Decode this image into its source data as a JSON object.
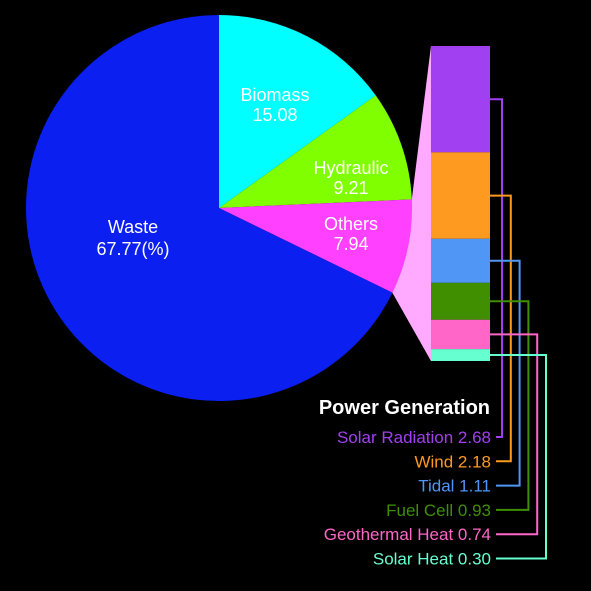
{
  "chart_data": {
    "type": "pie",
    "unit_note": "(%)",
    "slices": [
      {
        "name": "Waste",
        "value": 67.77,
        "color": "#0a1ff0",
        "value_label": "67.77(%)"
      },
      {
        "name": "Biomass",
        "value": 15.08,
        "color": "#00ffff",
        "value_label": "15.08"
      },
      {
        "name": "Hydraulic",
        "value": 9.21,
        "color": "#80ff00",
        "value_label": "9.21"
      },
      {
        "name": "Others",
        "value": 7.94,
        "color": "#ff40ff",
        "value_label": "7.94"
      }
    ],
    "breakdown": {
      "title": "Power Generation",
      "of": "Others",
      "type": "stacked-bar",
      "items": [
        {
          "name": "Solar Radiation",
          "value": 2.68,
          "color": "#a040f0",
          "label_color": "#a040f0",
          "value_label": "2.68"
        },
        {
          "name": "Wind",
          "value": 2.18,
          "color": "#ff9a20",
          "label_color": "#ff9a20",
          "value_label": "2.18"
        },
        {
          "name": "Tidal",
          "value": 1.11,
          "color": "#5097f5",
          "label_color": "#5097f5",
          "value_label": "1.11"
        },
        {
          "name": "Fuel Cell",
          "value": 0.93,
          "color": "#3f8f00",
          "label_color": "#3f8f00",
          "value_label": "0.93"
        },
        {
          "name": "Geothermal Heat",
          "value": 0.74,
          "color": "#ff66c8",
          "label_color": "#ff66c8",
          "value_label": "0.74"
        },
        {
          "name": "Solar Heat",
          "value": 0.3,
          "color": "#66ffd0",
          "label_color": "#66ffd0",
          "value_label": "0.30"
        }
      ]
    },
    "connector_color": "#ffaaff",
    "background": "#000000"
  }
}
